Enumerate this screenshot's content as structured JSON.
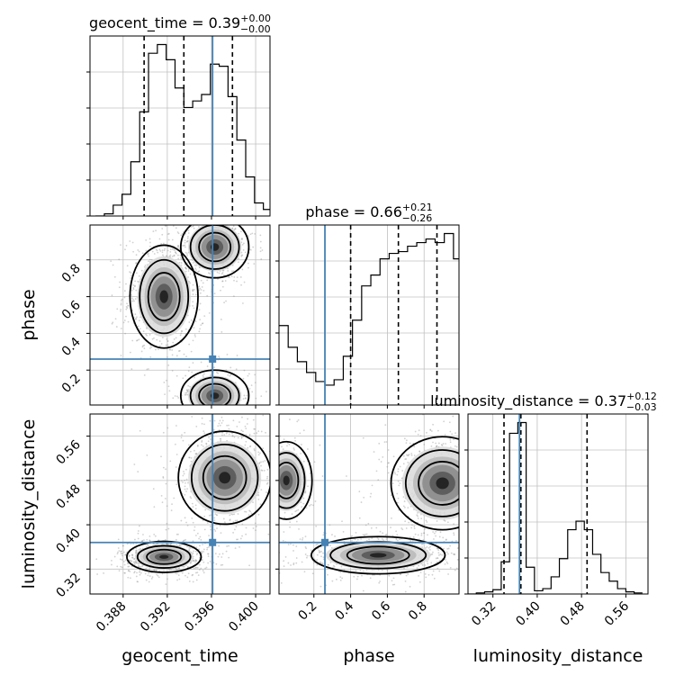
{
  "chart_data": {
    "type": "corner",
    "parameters": [
      "geocent_time",
      "phase",
      "luminosity_distance"
    ],
    "truths": {
      "geocent_time": 0.3961,
      "phase": 0.26,
      "luminosity_distance": 0.368
    },
    "colors": {
      "truth": "#4682b4",
      "hist": "#000000",
      "grid": "#c0c0c0",
      "scatter": "#9a9a9a"
    },
    "diagonal": [
      {
        "parameter": "geocent_time",
        "title_label": "geocent_time = 0.39",
        "title_sup": "+0.00",
        "title_sub": "−0.00",
        "xlim": [
          0.385,
          0.4013
        ],
        "quantiles": [
          0.3899,
          0.3935,
          0.3979
        ],
        "bins": [
          0.3855,
          0.3863,
          0.3871,
          0.3879,
          0.3887,
          0.3895,
          0.3903,
          0.3911,
          0.3919,
          0.3927,
          0.3935,
          0.3943,
          0.3951,
          0.3959,
          0.3967,
          0.3975,
          0.3983,
          0.3991,
          0.3999,
          0.4007,
          0.4015
        ],
        "counts": [
          0,
          1,
          5,
          10,
          25,
          48,
          75,
          79,
          72,
          59,
          50,
          53,
          56,
          70,
          69,
          55,
          35,
          18,
          6,
          3
        ]
      },
      {
        "parameter": "phase",
        "title_label": "phase = 0.66",
        "title_sup": "+0.21",
        "title_sub": "−0.26",
        "xlim": [
          0.01,
          0.99
        ],
        "quantiles": [
          0.4,
          0.66,
          0.87
        ],
        "bins": [
          0.01,
          0.06,
          0.11,
          0.16,
          0.21,
          0.26,
          0.31,
          0.36,
          0.41,
          0.46,
          0.51,
          0.56,
          0.61,
          0.66,
          0.71,
          0.76,
          0.81,
          0.86,
          0.91,
          0.96,
          0.99
        ],
        "counts": [
          44,
          32,
          24,
          18,
          13,
          11,
          14,
          27,
          47,
          66,
          72,
          81,
          84,
          85,
          88,
          90,
          92,
          90,
          95,
          81
        ]
      },
      {
        "parameter": "luminosity_distance",
        "title_label": "luminosity_distance = 0.37",
        "title_sup": "+0.12",
        "title_sub": "−0.03",
        "xlim": [
          0.275,
          0.6
        ],
        "quantiles": [
          0.34,
          0.3705,
          0.49
        ],
        "bins": [
          0.275,
          0.29,
          0.305,
          0.32,
          0.335,
          0.35,
          0.365,
          0.38,
          0.395,
          0.41,
          0.425,
          0.44,
          0.455,
          0.47,
          0.485,
          0.5,
          0.515,
          0.53,
          0.545,
          0.56,
          0.575,
          0.59
        ],
        "counts": [
          0,
          1,
          2,
          4,
          30,
          150,
          160,
          25,
          3,
          5,
          16,
          33,
          60,
          68,
          60,
          37,
          20,
          12,
          5,
          2,
          1
        ]
      }
    ],
    "pairs": [
      {
        "x": "geocent_time",
        "y": "phase",
        "xlim": [
          0.385,
          0.4013
        ],
        "ylim": [
          0.01,
          0.99
        ],
        "blobs": [
          {
            "center": [
              0.3917,
              0.6
            ],
            "spread": [
              0.0011,
              0.1
            ],
            "weight": 0.45
          },
          {
            "center": [
              0.3963,
              0.87
            ],
            "spread": [
              0.0011,
              0.06
            ],
            "weight": 0.37
          },
          {
            "center": [
              0.3963,
              0.06
            ],
            "spread": [
              0.0011,
              0.05
            ],
            "weight": 0.18
          }
        ]
      },
      {
        "x": "geocent_time",
        "y": "luminosity_distance",
        "xlim": [
          0.385,
          0.4013
        ],
        "ylim": [
          0.275,
          0.6
        ],
        "blobs": [
          {
            "center": [
              0.3917,
              0.342
            ],
            "spread": [
              0.0012,
              0.01
            ],
            "weight": 0.5
          },
          {
            "center": [
              0.3972,
              0.485
            ],
            "spread": [
              0.0015,
              0.03
            ],
            "weight": 0.5
          }
        ]
      },
      {
        "x": "phase",
        "y": "luminosity_distance",
        "xlim": [
          0.01,
          0.99
        ],
        "ylim": [
          0.275,
          0.6
        ],
        "blobs": [
          {
            "center": [
              0.55,
              0.345
            ],
            "spread": [
              0.13,
              0.012
            ],
            "weight": 0.42
          },
          {
            "center": [
              0.9,
              0.475
            ],
            "spread": [
              0.1,
              0.03
            ],
            "weight": 0.43
          },
          {
            "center": [
              0.05,
              0.48
            ],
            "spread": [
              0.05,
              0.025
            ],
            "weight": 0.15
          }
        ]
      }
    ],
    "axis_labels": {
      "x": [
        "geocent_time",
        "phase",
        "luminosity_distance"
      ],
      "y": [
        "phase",
        "luminosity_distance"
      ]
    },
    "tick_labels": {
      "geocent_time": [
        {
          "value": 0.388,
          "label": "0.388"
        },
        {
          "value": 0.392,
          "label": "0.392"
        },
        {
          "value": 0.396,
          "label": "0.396"
        },
        {
          "value": 0.4,
          "label": "0.400"
        }
      ],
      "phase": [
        {
          "value": 0.2,
          "label": "0.2"
        },
        {
          "value": 0.4,
          "label": "0.4"
        },
        {
          "value": 0.6,
          "label": "0.6"
        },
        {
          "value": 0.8,
          "label": "0.8"
        }
      ],
      "luminosity_distance": [
        {
          "value": 0.32,
          "label": "0.32"
        },
        {
          "value": 0.4,
          "label": "0.40"
        },
        {
          "value": 0.48,
          "label": "0.48"
        },
        {
          "value": 0.56,
          "label": "0.56"
        }
      ]
    },
    "grid": true
  }
}
